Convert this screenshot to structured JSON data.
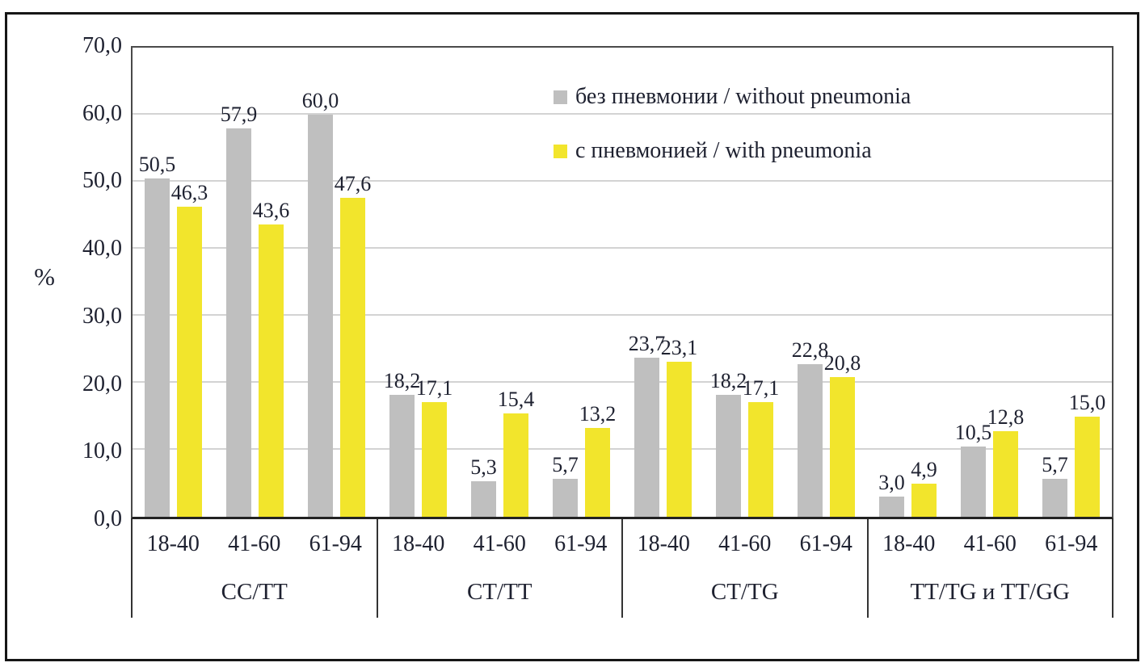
{
  "chart_data": {
    "type": "bar",
    "title": "",
    "ylabel": "%",
    "ylim": [
      0,
      70
    ],
    "grid": true,
    "legend_position": "inside-top-right",
    "y_ticks": [
      {
        "v": 70,
        "label": "70,0"
      },
      {
        "v": 60,
        "label": "60,0"
      },
      {
        "v": 50,
        "label": "50,0"
      },
      {
        "v": 40,
        "label": "40,0"
      },
      {
        "v": 30,
        "label": "30,0"
      },
      {
        "v": 20,
        "label": "20,0"
      },
      {
        "v": 10,
        "label": "10,0"
      },
      {
        "v": 0,
        "label": "0,0"
      }
    ],
    "groups": [
      {
        "label": "CC/TT",
        "categories": [
          "18-40",
          "41-60",
          "61-94"
        ]
      },
      {
        "label": "CT/TT",
        "categories": [
          "18-40",
          "41-60",
          "61-94"
        ]
      },
      {
        "label": "CT/TG",
        "categories": [
          "18-40",
          "41-60",
          "61-94"
        ]
      },
      {
        "label": "TT/TG и TT/GG",
        "categories": [
          "18-40",
          "41-60",
          "61-94"
        ]
      }
    ],
    "series": [
      {
        "name": "без пневмонии / without pneumonia",
        "color": "#BFBFBF",
        "values": [
          [
            50.5,
            57.9,
            60.0
          ],
          [
            18.2,
            5.3,
            5.7
          ],
          [
            23.7,
            18.2,
            22.8
          ],
          [
            3.0,
            10.5,
            5.7
          ]
        ]
      },
      {
        "name": "с пневмонией / with pneumonia",
        "color": "#F2E52C",
        "values": [
          [
            46.3,
            43.6,
            47.6
          ],
          [
            17.1,
            15.4,
            13.2
          ],
          [
            23.1,
            17.1,
            20.8
          ],
          [
            4.9,
            12.8,
            15.0
          ]
        ]
      }
    ],
    "value_labels": {
      "decimals": 1,
      "decimal_separator": ","
    }
  },
  "colors": {
    "grid": "#D3D3D3",
    "plot_border": "#4A4A4A",
    "axis_line": "#222222",
    "frame_border": "#161616",
    "text": "#1E2130",
    "background": "#FFFFFF"
  }
}
